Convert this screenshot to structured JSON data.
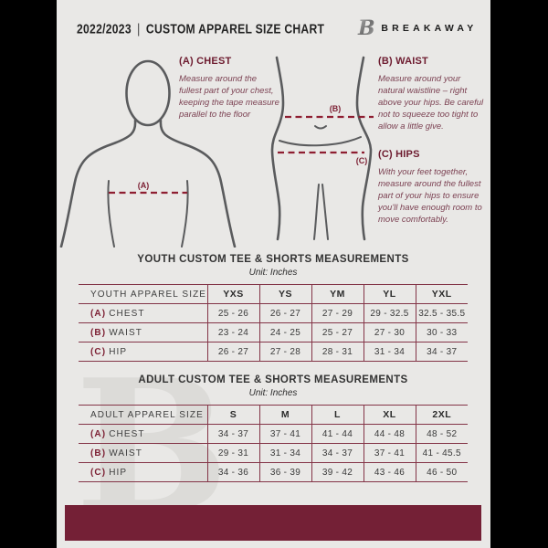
{
  "header": {
    "season": "2022/2023",
    "separator": "|",
    "title": "CUSTOM APPAREL SIZE CHART",
    "brand": "BREAKAWAY",
    "logo_letter": "B"
  },
  "instructions": {
    "chest": {
      "label": "(A) CHEST",
      "text": "Measure around the fullest part of your chest, keeping the tape measure parallel to the floor"
    },
    "waist": {
      "label": "(B) WAIST",
      "text": "Measure around your natural waistline – right above your hips. Be careful not to squeeze too tight to allow a little give."
    },
    "hips": {
      "label": "(C) HIPS",
      "text": "With your feet together, measure around the fullest part of your hips to ensure you'll have enough room to move comfortably."
    }
  },
  "diagram_markers": {
    "chest": "(A)",
    "waist": "(B)",
    "hips": "(C)"
  },
  "youth_table": {
    "title": "YOUTH CUSTOM TEE & SHORTS MEASUREMENTS",
    "unit": "Unit: Inches",
    "header_col": "YOUTH APPAREL SIZE",
    "sizes": [
      "YXS",
      "YS",
      "YM",
      "YL",
      "YXL"
    ],
    "rows": [
      {
        "prefix": "(A)",
        "label": "CHEST",
        "values": [
          "25 - 26",
          "26 - 27",
          "27 - 29",
          "29 - 32.5",
          "32.5 - 35.5"
        ]
      },
      {
        "prefix": "(B)",
        "label": "WAIST",
        "values": [
          "23 - 24",
          "24 - 25",
          "25 - 27",
          "27 - 30",
          "30 - 33"
        ]
      },
      {
        "prefix": "(C)",
        "label": "HIP",
        "values": [
          "26 - 27",
          "27 - 28",
          "28 - 31",
          "31 - 34",
          "34 - 37"
        ]
      }
    ]
  },
  "adult_table": {
    "title": "ADULT CUSTOM TEE & SHORTS MEASUREMENTS",
    "unit": "Unit: Inches",
    "header_col": "ADULT APPAREL SIZE",
    "sizes": [
      "S",
      "M",
      "L",
      "XL",
      "2XL"
    ],
    "rows": [
      {
        "prefix": "(A)",
        "label": "CHEST",
        "values": [
          "34 - 37",
          "37 - 41",
          "41 - 44",
          "44 - 48",
          "48 - 52"
        ]
      },
      {
        "prefix": "(B)",
        "label": "WAIST",
        "values": [
          "29 - 31",
          "31 - 34",
          "34 - 37",
          "37 - 41",
          "41 - 45.5"
        ]
      },
      {
        "prefix": "(C)",
        "label": "HIP",
        "values": [
          "34 - 36",
          "36 - 39",
          "39 - 42",
          "43 - 46",
          "46 - 50"
        ]
      }
    ]
  },
  "colors": {
    "page_background": "#e9e8e6",
    "pillarbox_black": "#000000",
    "maroon_accent": "#7c1f33",
    "footer_bar": "#742036",
    "dashed_line": "#8e1e31",
    "table_border": "#833447",
    "figure_outline": "#5a5b5d"
  }
}
